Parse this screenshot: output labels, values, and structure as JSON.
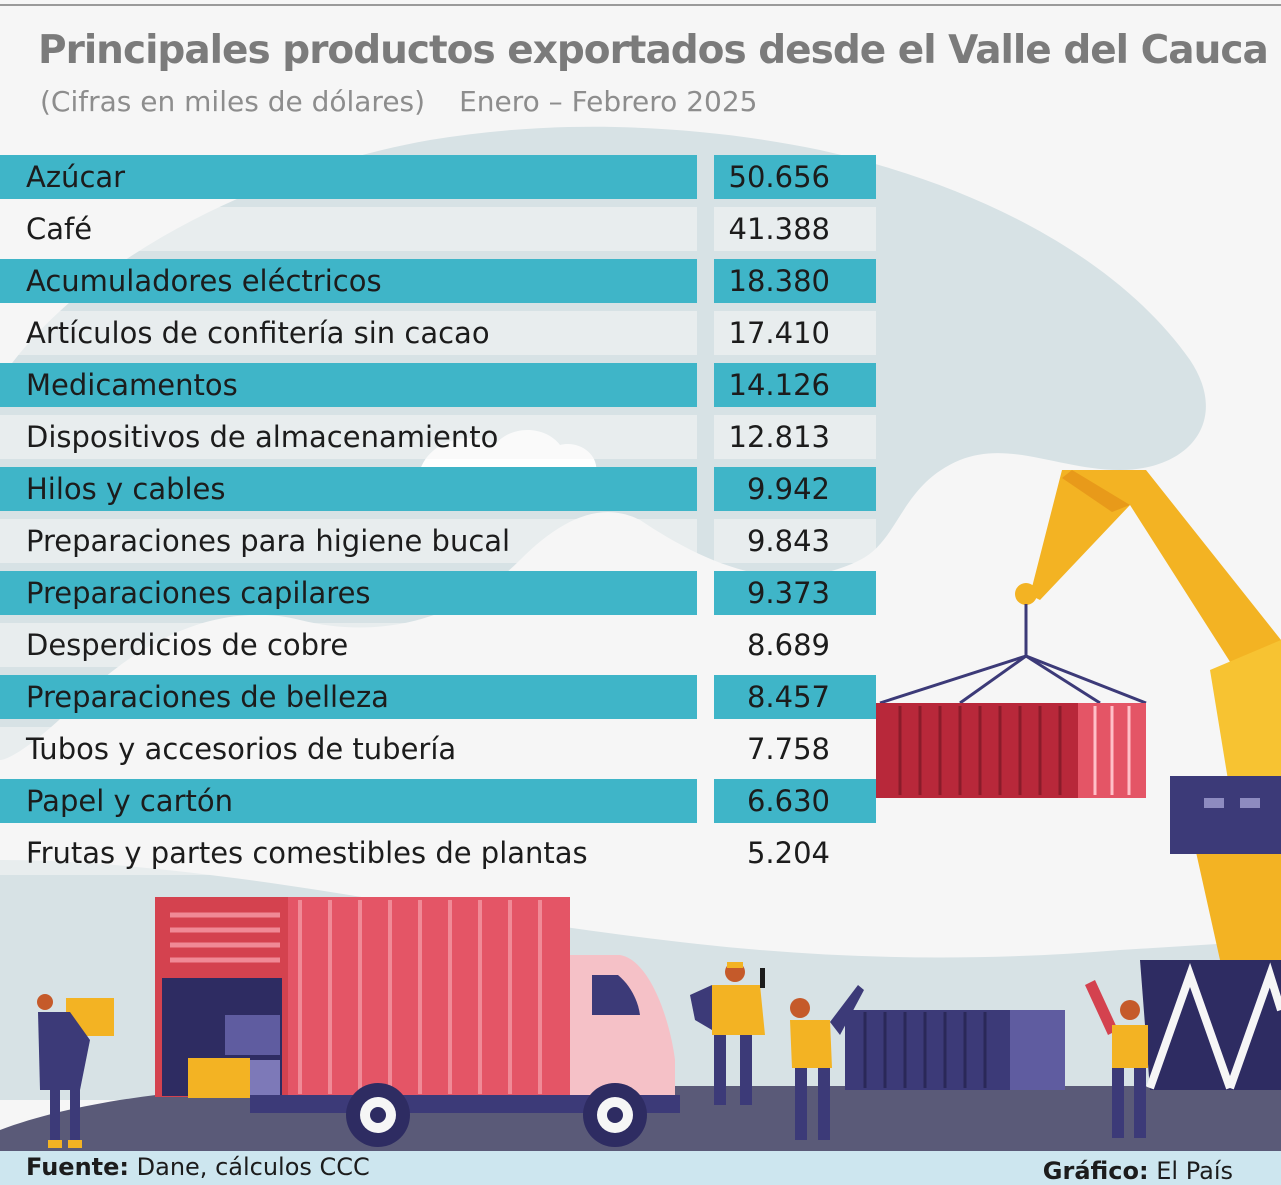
{
  "chart_data": {
    "type": "table",
    "title": "Principales productos exportados desde el Valle del Cauca",
    "subtitle_units": "(Cifras en miles de dólares)",
    "subtitle_period": "Enero – Febrero 2025",
    "rows": [
      {
        "product": "Azúcar",
        "value": "50.656"
      },
      {
        "product": "Café",
        "value": "41.388"
      },
      {
        "product": "Acumuladores eléctricos",
        "value": "18.380"
      },
      {
        "product": "Artículos de confitería sin cacao",
        "value": "17.410"
      },
      {
        "product": "Medicamentos",
        "value": "14.126"
      },
      {
        "product": "Dispositivos de almacenamiento",
        "value": "12.813"
      },
      {
        "product": "Hilos y cables",
        "value": "9.942"
      },
      {
        "product": "Preparaciones para higiene bucal",
        "value": "9.843"
      },
      {
        "product": "Preparaciones capilares",
        "value": "9.373"
      },
      {
        "product": "Desperdicios de cobre",
        "value": "8.689"
      },
      {
        "product": "Preparaciones de belleza",
        "value": "8.457"
      },
      {
        "product": "Tubos y accesorios de tubería",
        "value": "7.758"
      },
      {
        "product": "Papel y cartón",
        "value": "6.630"
      },
      {
        "product": "Frutas y partes comestibles de plantas",
        "value": "5.204"
      }
    ]
  },
  "footer": {
    "source_label": "Fuente:",
    "source_value": "Dane, cálculos CCC",
    "credit_label": "Gráfico:",
    "credit_value": "El País"
  },
  "colors": {
    "stripe": "#3fb5c8",
    "title": "#7b7b7b",
    "footer_bg": "#cde6ef"
  }
}
